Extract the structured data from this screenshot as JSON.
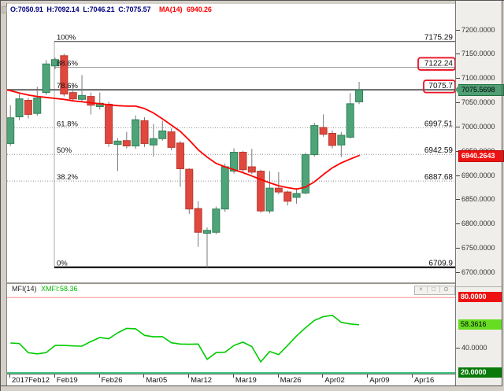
{
  "info_bar": {
    "ohlc_text": "O:7050.91  H:7092.14  L:7046.21  C:7075.57",
    "ma_label": "MA(14)",
    "ma_value": "6940.26"
  },
  "colors": {
    "up_fill": "#4fa378",
    "up_border": "#2f8257",
    "down_fill": "#e0483e",
    "down_border": "#b93830",
    "wick": "#777777",
    "ma_line": "#ff0000",
    "mfi_line": "#00cc00",
    "overbought_line": "#ff8a8a",
    "oversold_line": "#00b050",
    "fib_box": "#e81123"
  },
  "chart_data": [
    {
      "type": "candlestick",
      "name": "price-panel",
      "x_labels": [
        "2017Feb12",
        "Feb19",
        "Feb26",
        "Mar05",
        "Mar12",
        "Mar19",
        "Mar26",
        "Apr02",
        "Apr09",
        "Apr16"
      ],
      "y_axis": {
        "min": 6700,
        "max": 7200,
        "step": 50,
        "decimals": 4
      },
      "candles": [
        [
          6965,
          7044,
          6960,
          7018
        ],
        [
          7020,
          7067,
          7013,
          7057
        ],
        [
          7054,
          7059,
          7017,
          7025
        ],
        [
          7027,
          7082,
          7022,
          7059
        ],
        [
          7070,
          7137,
          7065,
          7129
        ],
        [
          7125,
          7142,
          7118,
          7138
        ],
        [
          7146,
          7150,
          7062,
          7067
        ],
        [
          7070,
          7086,
          7054,
          7057
        ],
        [
          7056,
          7106,
          7050,
          7064
        ],
        [
          7062,
          7070,
          7025,
          7044
        ],
        [
          7041,
          7070,
          7035,
          7048
        ],
        [
          7046,
          7051,
          6958,
          6965
        ],
        [
          6963,
          6976,
          6908,
          6970
        ],
        [
          6971,
          6989,
          6955,
          6960
        ],
        [
          6960,
          7023,
          6954,
          7014
        ],
        [
          7012,
          7019,
          6958,
          6965
        ],
        [
          6962,
          7005,
          6938,
          6975
        ],
        [
          6975,
          7012,
          6971,
          6991
        ],
        [
          6989,
          6996,
          6951,
          6957
        ],
        [
          6966,
          6970,
          6876,
          6913
        ],
        [
          6912,
          6914,
          6820,
          6830
        ],
        [
          6831,
          6846,
          6752,
          6782
        ],
        [
          6780,
          6792,
          6709.9,
          6786
        ],
        [
          6782,
          6835,
          6778,
          6830
        ],
        [
          6830,
          6924,
          6824,
          6917
        ],
        [
          6908,
          6955,
          6903,
          6947
        ],
        [
          6947,
          6950,
          6905,
          6911
        ],
        [
          6917,
          6954,
          6902,
          6906
        ],
        [
          6908,
          6911,
          6822,
          6826
        ],
        [
          6826,
          6908,
          6821,
          6873
        ],
        [
          6873,
          6906,
          6860,
          6865
        ],
        [
          6865,
          6868,
          6837,
          6846
        ],
        [
          6854,
          6873,
          6841,
          6862
        ],
        [
          6863,
          6946,
          6860,
          6942
        ],
        [
          6942,
          7008,
          6938,
          7002
        ],
        [
          6998,
          7025,
          6979,
          6984
        ],
        [
          6986,
          6992,
          6955,
          6961
        ],
        [
          6962,
          6989,
          6937,
          6982
        ],
        [
          6978,
          7069,
          6975,
          7047
        ],
        [
          7050.91,
          7092.14,
          7046.21,
          7075.57
        ]
      ],
      "ma14": [
        7074,
        7069,
        7065,
        7062,
        7060,
        7058,
        7056,
        7053,
        7051,
        7049,
        7047,
        7045,
        7043,
        7042,
        7042,
        7037,
        7028,
        7016,
        7003,
        6990,
        6972,
        6952,
        6937,
        6924,
        6917,
        6911,
        6905,
        6898,
        6891,
        6884,
        6878,
        6874,
        6871,
        6875,
        6886,
        6901,
        6915,
        6925,
        6933,
        6940.26
      ],
      "fib_levels": [
        {
          "pct": "100%",
          "label": "7175.29",
          "price": 7175.29,
          "style": "solid-dark",
          "from_anchor": true,
          "boxed": false
        },
        {
          "pct": "88.6%",
          "label": "7122.24",
          "price": 7122.24,
          "style": "solid",
          "from_anchor": true,
          "boxed": true
        },
        {
          "pct": "78.6%",
          "label": "7075.7",
          "price": 7075.7,
          "style": "solid-thick",
          "from_anchor": false,
          "boxed": true
        },
        {
          "pct": "61.8%",
          "label": "6997.51",
          "price": 6997.51,
          "style": "dotted",
          "from_anchor": false,
          "boxed": false
        },
        {
          "pct": "50%",
          "label": "6942.59",
          "price": 6942.59,
          "style": "dotted",
          "from_anchor": false,
          "boxed": false
        },
        {
          "pct": "38.2%",
          "label": "6887.68",
          "price": 6887.68,
          "style": "dotted",
          "from_anchor": false,
          "boxed": false
        },
        {
          "pct": "0%",
          "label": "6709.9",
          "price": 6709.9,
          "style": "solid-black",
          "from_anchor": true,
          "boxed": false
        }
      ],
      "price_tags": [
        {
          "text": "7075.5698",
          "price": 7075.5698,
          "bg": "#4f9e74",
          "fg": "#000000",
          "border": "#20713f",
          "arrow": true,
          "bold": false
        },
        {
          "text": "6940.2643",
          "price": 6940.2643,
          "bg": "#ee1111",
          "fg": "#ffffff",
          "border": "#c40000",
          "arrow": false,
          "bold": true
        }
      ]
    },
    {
      "type": "line",
      "name": "mfi-panel",
      "title": "MFI(14)",
      "value_label": "XMFI:58.36",
      "values": [
        43.8,
        43.4,
        36.1,
        35.2,
        36.2,
        41.9,
        41.9,
        41.5,
        41.3,
        45.0,
        48.2,
        47.2,
        52.0,
        55.5,
        55.2,
        49.9,
        48.8,
        48.9,
        44.0,
        43.0,
        42.8,
        43.0,
        30.8,
        36.2,
        36.5,
        41.9,
        44.5,
        41.0,
        28.8,
        37.1,
        34.6,
        41.9,
        49.4,
        56.0,
        61.9,
        64.8,
        65.9,
        60.3,
        59.0,
        58.3616
      ],
      "levels": [
        {
          "value": 80,
          "label": "80.0000",
          "tag_bg": "#ee1111",
          "tag_fg": "#ffffff",
          "bold": true,
          "line": "overbought"
        },
        {
          "value": 58.3616,
          "label": "58.3616",
          "tag_bg": "#66dd22",
          "tag_fg": "#000000",
          "bold": false,
          "line": null
        },
        {
          "value": 40,
          "label": "40.0000",
          "tag_bg": null,
          "tag_fg": "#333333",
          "bold": false,
          "line": null
        },
        {
          "value": 20,
          "label": "20.0000",
          "tag_bg": "#0a7a0a",
          "tag_fg": "#ffffff",
          "bold": true,
          "line": "oversold"
        }
      ],
      "window_buttons": [
        "×",
        "□",
        "⊙"
      ]
    }
  ]
}
